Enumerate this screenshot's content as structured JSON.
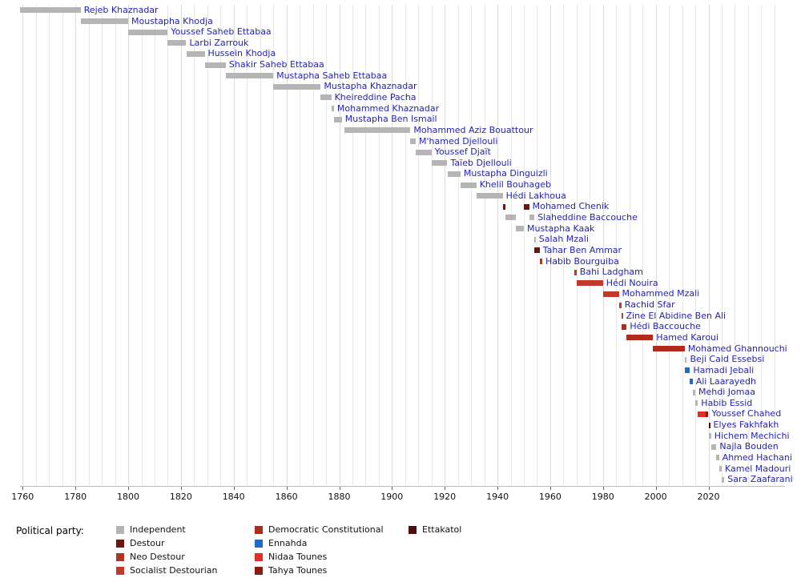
{
  "chart_data": {
    "type": "timeline",
    "title": "",
    "label_color": "#2323b3",
    "axis": {
      "year_min": 1759,
      "year_max": 2049,
      "grid_start": 1760,
      "grid_end": 2045,
      "grid_step": 5,
      "ticks": [
        1760,
        1780,
        1800,
        1820,
        1840,
        1860,
        1880,
        1900,
        1920,
        1940,
        1960,
        1980,
        2000,
        2020
      ]
    },
    "parties": {
      "independent": "#b5b5b5",
      "destour": "#6d1512",
      "neo_destour": "#b0342a",
      "socialist_destourian": "#c0392b",
      "democratic_constitutional": "#b22a1b",
      "ennahda": "#1e6cc8",
      "nidaa_tounes": "#e22f25",
      "tahya_tounes": "#8c1a10",
      "ettakatol": "#4d0f0f"
    },
    "legend": {
      "title": "Political party:",
      "columns": [
        [
          {
            "label": "Independent",
            "party": "independent"
          },
          {
            "label": "Destour",
            "party": "destour"
          },
          {
            "label": "Neo Destour",
            "party": "neo_destour"
          },
          {
            "label": "Socialist Destourian",
            "party": "socialist_destourian"
          }
        ],
        [
          {
            "label": "Democratic Constitutional",
            "party": "democratic_constitutional"
          },
          {
            "label": "Ennahda",
            "party": "ennahda"
          },
          {
            "label": "Nidaa Tounes",
            "party": "nidaa_tounes"
          },
          {
            "label": "Tahya Tounes",
            "party": "tahya_tounes"
          }
        ],
        [
          {
            "label": "Ettakatol",
            "party": "ettakatol"
          }
        ]
      ]
    },
    "people": [
      {
        "name": "Rejeb Khaznadar",
        "segments": [
          {
            "start": 1759,
            "end": 1782,
            "party": "independent"
          }
        ]
      },
      {
        "name": "Moustapha Khodja",
        "segments": [
          {
            "start": 1782,
            "end": 1800,
            "party": "independent"
          }
        ]
      },
      {
        "name": "Youssef Saheb Ettabaa",
        "segments": [
          {
            "start": 1800,
            "end": 1815,
            "party": "independent"
          }
        ]
      },
      {
        "name": "Larbi Zarrouk",
        "segments": [
          {
            "start": 1815,
            "end": 1822,
            "party": "independent"
          }
        ]
      },
      {
        "name": "Hussein Khodja",
        "segments": [
          {
            "start": 1822,
            "end": 1829,
            "party": "independent"
          }
        ]
      },
      {
        "name": "Shakir Saheb Ettabaa",
        "segments": [
          {
            "start": 1829,
            "end": 1837,
            "party": "independent"
          }
        ]
      },
      {
        "name": "Mustapha Saheb Ettabaa",
        "segments": [
          {
            "start": 1837,
            "end": 1855,
            "party": "independent"
          }
        ]
      },
      {
        "name": "Mustapha Khaznadar",
        "segments": [
          {
            "start": 1855,
            "end": 1873,
            "party": "independent"
          }
        ]
      },
      {
        "name": "Kheireddine Pacha",
        "segments": [
          {
            "start": 1873,
            "end": 1877,
            "party": "independent"
          }
        ]
      },
      {
        "name": "Mohammed Khaznadar",
        "segments": [
          {
            "start": 1877,
            "end": 1878,
            "party": "independent"
          }
        ]
      },
      {
        "name": "Mustapha Ben Ismail",
        "segments": [
          {
            "start": 1878,
            "end": 1881,
            "party": "independent"
          }
        ]
      },
      {
        "name": "Mohammed Aziz Bouattour",
        "segments": [
          {
            "start": 1882,
            "end": 1907,
            "party": "independent"
          }
        ]
      },
      {
        "name": "M'hamed Djellouli",
        "segments": [
          {
            "start": 1907,
            "end": 1909,
            "party": "independent"
          }
        ]
      },
      {
        "name": "Youssef Djaït",
        "segments": [
          {
            "start": 1909,
            "end": 1915,
            "party": "independent"
          }
        ]
      },
      {
        "name": "Taïeb Djellouli",
        "segments": [
          {
            "start": 1915,
            "end": 1921,
            "party": "independent"
          }
        ]
      },
      {
        "name": "Mustapha Dinguizli",
        "segments": [
          {
            "start": 1921,
            "end": 1926,
            "party": "independent"
          }
        ]
      },
      {
        "name": "Khelil Bouhageb",
        "segments": [
          {
            "start": 1926,
            "end": 1932,
            "party": "independent"
          }
        ]
      },
      {
        "name": "Hédi Lakhoua",
        "segments": [
          {
            "start": 1932,
            "end": 1942,
            "party": "independent"
          }
        ]
      },
      {
        "name": "Mohamed Chenik",
        "segments": [
          {
            "start": 1942,
            "end": 1943,
            "party": "destour"
          },
          {
            "start": 1950,
            "end": 1952,
            "party": "destour"
          }
        ]
      },
      {
        "name": "Slaheddine Baccouche",
        "segments": [
          {
            "start": 1943,
            "end": 1947,
            "party": "independent"
          },
          {
            "start": 1952,
            "end": 1954,
            "party": "independent"
          }
        ]
      },
      {
        "name": "Mustapha Kaak",
        "segments": [
          {
            "start": 1947,
            "end": 1950,
            "party": "independent"
          }
        ]
      },
      {
        "name": "Salah Mzali",
        "segments": [
          {
            "start": 1954,
            "end": 1954.5,
            "party": "independent"
          }
        ]
      },
      {
        "name": "Tahar Ben Ammar",
        "segments": [
          {
            "start": 1954,
            "end": 1956,
            "party": "destour"
          }
        ]
      },
      {
        "name": "Habib Bourguiba",
        "segments": [
          {
            "start": 1956,
            "end": 1957,
            "party": "neo_destour"
          }
        ]
      },
      {
        "name": "Bahi Ladgham",
        "segments": [
          {
            "start": 1969,
            "end": 1970,
            "party": "socialist_destourian"
          }
        ]
      },
      {
        "name": "Hédi Nouira",
        "segments": [
          {
            "start": 1970,
            "end": 1980,
            "party": "socialist_destourian"
          }
        ]
      },
      {
        "name": "Mohammed Mzali",
        "segments": [
          {
            "start": 1980,
            "end": 1986,
            "party": "socialist_destourian"
          }
        ]
      },
      {
        "name": "Rachid Sfar",
        "segments": [
          {
            "start": 1986,
            "end": 1987,
            "party": "socialist_destourian"
          }
        ]
      },
      {
        "name": "Zine El Abidine Ben Ali",
        "segments": [
          {
            "start": 1987,
            "end": 1987.5,
            "party": "socialist_destourian"
          }
        ]
      },
      {
        "name": "Hédi Baccouche",
        "segments": [
          {
            "start": 1987,
            "end": 1989,
            "party": "democratic_constitutional"
          }
        ]
      },
      {
        "name": "Hamed Karoui",
        "segments": [
          {
            "start": 1989,
            "end": 1999,
            "party": "democratic_constitutional"
          }
        ]
      },
      {
        "name": "Mohamed Ghannouchi",
        "segments": [
          {
            "start": 1999,
            "end": 2011,
            "party": "democratic_constitutional"
          }
        ]
      },
      {
        "name": "Beji Caid Essebsi",
        "segments": [
          {
            "start": 2011,
            "end": 2011.8,
            "party": "independent"
          }
        ]
      },
      {
        "name": "Hamadi Jebali",
        "segments": [
          {
            "start": 2011,
            "end": 2013,
            "party": "ennahda"
          }
        ]
      },
      {
        "name": "Ali Laarayedh",
        "segments": [
          {
            "start": 2013,
            "end": 2014,
            "party": "ennahda"
          }
        ]
      },
      {
        "name": "Mehdi Jomaa",
        "segments": [
          {
            "start": 2014,
            "end": 2015,
            "party": "independent"
          }
        ]
      },
      {
        "name": "Habib Essid",
        "segments": [
          {
            "start": 2015,
            "end": 2016,
            "party": "independent"
          }
        ]
      },
      {
        "name": "Youssef Chahed",
        "segments": [
          {
            "start": 2016,
            "end": 2019,
            "party": "nidaa_tounes"
          },
          {
            "start": 2019,
            "end": 2020,
            "party": "tahya_tounes"
          }
        ]
      },
      {
        "name": "Elyes Fakhfakh",
        "segments": [
          {
            "start": 2020,
            "end": 2020.6,
            "party": "ettakatol"
          }
        ]
      },
      {
        "name": "Hichem Mechichi",
        "segments": [
          {
            "start": 2020,
            "end": 2021,
            "party": "independent"
          }
        ]
      },
      {
        "name": "Najla Bouden",
        "segments": [
          {
            "start": 2021,
            "end": 2023,
            "party": "independent"
          }
        ]
      },
      {
        "name": "Ahmed Hachani",
        "segments": [
          {
            "start": 2023,
            "end": 2024,
            "party": "independent"
          }
        ]
      },
      {
        "name": "Kamel Madouri",
        "segments": [
          {
            "start": 2024,
            "end": 2025,
            "party": "independent"
          }
        ]
      },
      {
        "name": "Sara Zaafarani",
        "segments": [
          {
            "start": 2025,
            "end": 2026,
            "party": "independent"
          }
        ]
      }
    ]
  }
}
